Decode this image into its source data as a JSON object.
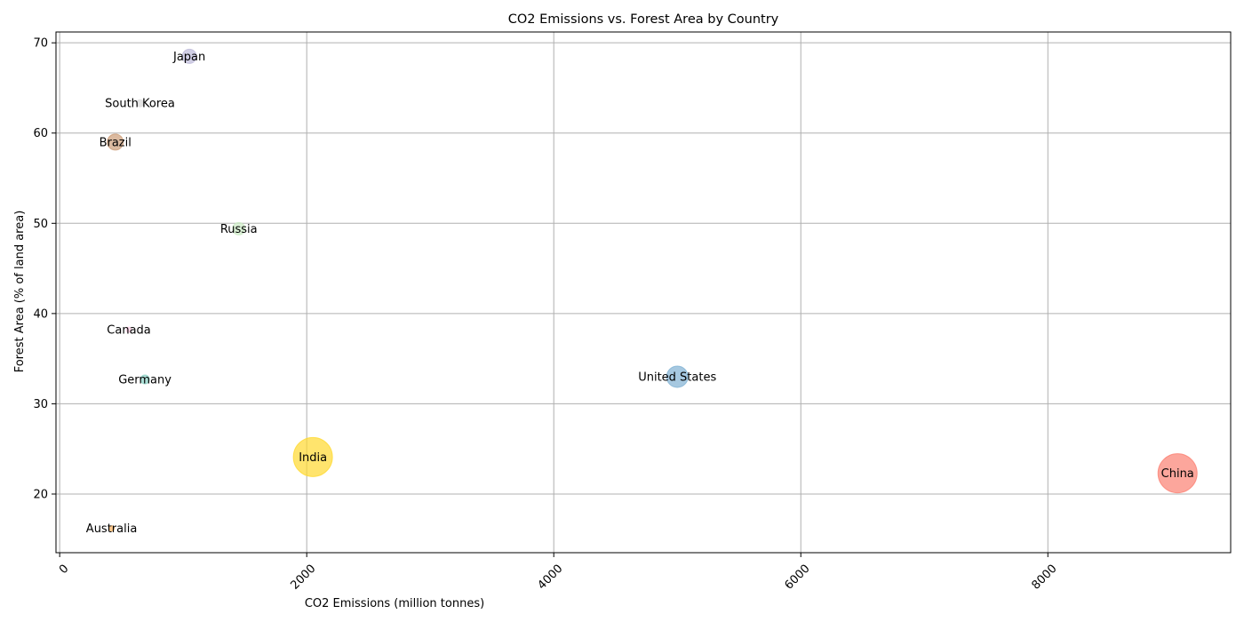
{
  "chart_data": {
    "type": "scatter",
    "title": "CO2 Emissions vs. Forest Area by Country",
    "xlabel": "CO2 Emissions (million tonnes)",
    "ylabel": "Forest Area (% of land area)",
    "xlim": [
      -30,
      9480
    ],
    "ylim": [
      13.5,
      71.2
    ],
    "xticks": [
      0,
      2000,
      4000,
      6000,
      8000
    ],
    "yticks": [
      20,
      30,
      40,
      50,
      60,
      70
    ],
    "xtick_rotation": 45,
    "grid": true,
    "legend": "none",
    "points": [
      {
        "label": "Japan",
        "x": 1050,
        "y": 68.5,
        "size": 8,
        "color": "#bebada"
      },
      {
        "label": "South Korea",
        "x": 650,
        "y": 63.3,
        "size": 4,
        "color": "#d9d9d9"
      },
      {
        "label": "Brazil",
        "x": 450,
        "y": 59.0,
        "size": 9,
        "color": "#cc9c77"
      },
      {
        "label": "Russia",
        "x": 1450,
        "y": 49.4,
        "size": 7,
        "color": "#ccebc5"
      },
      {
        "label": "Canada",
        "x": 560,
        "y": 38.2,
        "size": 3,
        "color": "#fccde5"
      },
      {
        "label": "Germany",
        "x": 690,
        "y": 32.7,
        "size": 5,
        "color": "#8dd3c7"
      },
      {
        "label": "United States",
        "x": 5000,
        "y": 33.0,
        "size": 12,
        "color": "#80b1d3"
      },
      {
        "label": "India",
        "x": 2050,
        "y": 24.1,
        "size": 22,
        "color": "#ffd92f"
      },
      {
        "label": "China",
        "x": 9050,
        "y": 22.3,
        "size": 22,
        "color": "#fb8072"
      },
      {
        "label": "Australia",
        "x": 420,
        "y": 16.2,
        "size": 3,
        "color": "#fdb462"
      }
    ]
  }
}
